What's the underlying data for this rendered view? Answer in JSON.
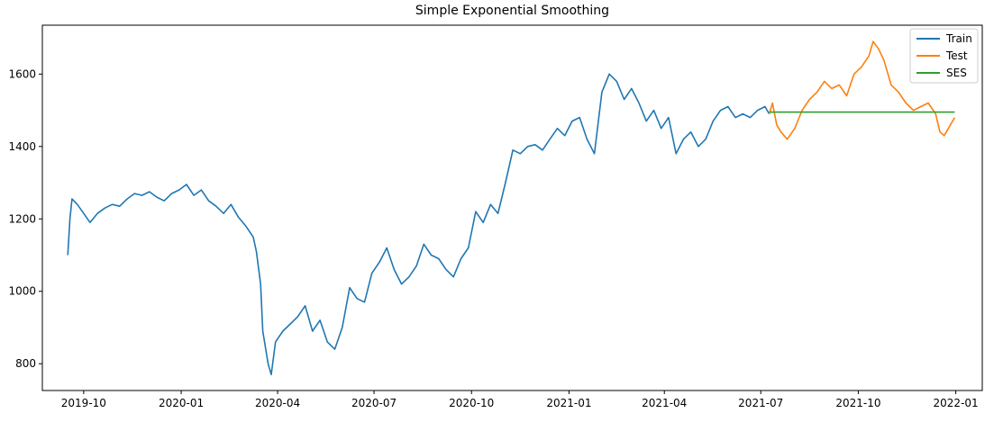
{
  "chart_data": {
    "type": "line",
    "title": "Simple Exponential Smoothing",
    "xlabel": "",
    "ylabel": "",
    "x_tick_labels": [
      "2019-10",
      "2020-01",
      "2020-04",
      "2020-07",
      "2020-10",
      "2021-01",
      "2021-04",
      "2021-07",
      "2021-10",
      "2022-01"
    ],
    "y_ticks": [
      800,
      1000,
      1200,
      1400,
      1600
    ],
    "xlim": [
      "2019-08-23",
      "2022-01-26"
    ],
    "ylim": [
      726,
      1735
    ],
    "grid": false,
    "legend_position": "top-right",
    "series": [
      {
        "name": "Train",
        "color": "#1f77b4",
        "x": [
          "2019-09-16",
          "2019-09-18",
          "2019-09-20",
          "2019-09-25",
          "2019-10-01",
          "2019-10-07",
          "2019-10-14",
          "2019-10-21",
          "2019-10-28",
          "2019-11-04",
          "2019-11-11",
          "2019-11-18",
          "2019-11-25",
          "2019-12-02",
          "2019-12-09",
          "2019-12-16",
          "2019-12-23",
          "2019-12-30",
          "2020-01-06",
          "2020-01-13",
          "2020-01-20",
          "2020-01-27",
          "2020-02-03",
          "2020-02-10",
          "2020-02-17",
          "2020-02-24",
          "2020-03-02",
          "2020-03-09",
          "2020-03-12",
          "2020-03-16",
          "2020-03-18",
          "2020-03-23",
          "2020-03-26",
          "2020-03-30",
          "2020-04-06",
          "2020-04-13",
          "2020-04-20",
          "2020-04-27",
          "2020-05-04",
          "2020-05-11",
          "2020-05-18",
          "2020-05-25",
          "2020-06-01",
          "2020-06-08",
          "2020-06-15",
          "2020-06-22",
          "2020-06-29",
          "2020-07-06",
          "2020-07-13",
          "2020-07-20",
          "2020-07-27",
          "2020-08-03",
          "2020-08-10",
          "2020-08-17",
          "2020-08-24",
          "2020-08-31",
          "2020-09-07",
          "2020-09-14",
          "2020-09-21",
          "2020-09-28",
          "2020-10-05",
          "2020-10-12",
          "2020-10-19",
          "2020-10-26",
          "2020-11-02",
          "2020-11-09",
          "2020-11-16",
          "2020-11-23",
          "2020-11-30",
          "2020-12-07",
          "2020-12-14",
          "2020-12-21",
          "2020-12-28",
          "2021-01-04",
          "2021-01-11",
          "2021-01-18",
          "2021-01-25",
          "2021-02-01",
          "2021-02-08",
          "2021-02-15",
          "2021-02-22",
          "2021-03-01",
          "2021-03-08",
          "2021-03-15",
          "2021-03-22",
          "2021-03-29",
          "2021-04-05",
          "2021-04-12",
          "2021-04-19",
          "2021-04-26",
          "2021-05-03",
          "2021-05-10",
          "2021-05-17",
          "2021-05-24",
          "2021-05-31",
          "2021-06-07",
          "2021-06-14",
          "2021-06-21",
          "2021-06-28",
          "2021-07-05",
          "2021-07-09"
        ],
        "y": [
          1100,
          1200,
          1255,
          1240,
          1215,
          1190,
          1215,
          1230,
          1240,
          1235,
          1255,
          1270,
          1265,
          1275,
          1260,
          1250,
          1270,
          1280,
          1295,
          1265,
          1280,
          1250,
          1235,
          1215,
          1240,
          1205,
          1180,
          1150,
          1110,
          1020,
          890,
          800,
          770,
          860,
          890,
          910,
          930,
          960,
          890,
          920,
          860,
          840,
          900,
          1010,
          980,
          970,
          1050,
          1080,
          1120,
          1060,
          1020,
          1040,
          1070,
          1130,
          1100,
          1090,
          1060,
          1040,
          1090,
          1120,
          1220,
          1190,
          1240,
          1215,
          1300,
          1390,
          1380,
          1400,
          1405,
          1390,
          1420,
          1450,
          1430,
          1470,
          1480,
          1420,
          1380,
          1550,
          1600,
          1580,
          1530,
          1560,
          1520,
          1470,
          1500,
          1450,
          1480,
          1380,
          1420,
          1440,
          1400,
          1420,
          1470,
          1500,
          1510,
          1480,
          1490,
          1480,
          1500,
          1510,
          1490
        ]
      },
      {
        "name": "Test",
        "color": "#ff7f0e",
        "x": [
          "2021-07-09",
          "2021-07-12",
          "2021-07-16",
          "2021-07-20",
          "2021-07-26",
          "2021-08-02",
          "2021-08-09",
          "2021-08-16",
          "2021-08-23",
          "2021-08-30",
          "2021-09-06",
          "2021-09-13",
          "2021-09-20",
          "2021-09-27",
          "2021-10-04",
          "2021-10-11",
          "2021-10-15",
          "2021-10-20",
          "2021-10-25",
          "2021-11-01",
          "2021-11-08",
          "2021-11-15",
          "2021-11-22",
          "2021-11-29",
          "2021-12-06",
          "2021-12-13",
          "2021-12-17",
          "2021-12-21",
          "2021-12-27",
          "2021-12-31"
        ],
        "y": [
          1490,
          1520,
          1460,
          1440,
          1420,
          1450,
          1500,
          1530,
          1550,
          1580,
          1560,
          1570,
          1540,
          1600,
          1620,
          1650,
          1690,
          1670,
          1640,
          1570,
          1550,
          1520,
          1500,
          1510,
          1520,
          1490,
          1440,
          1430,
          1460,
          1480
        ]
      },
      {
        "name": "SES",
        "color": "#2ca02c",
        "x": [
          "2021-07-09",
          "2021-12-31"
        ],
        "y": [
          1495,
          1495
        ]
      }
    ]
  }
}
